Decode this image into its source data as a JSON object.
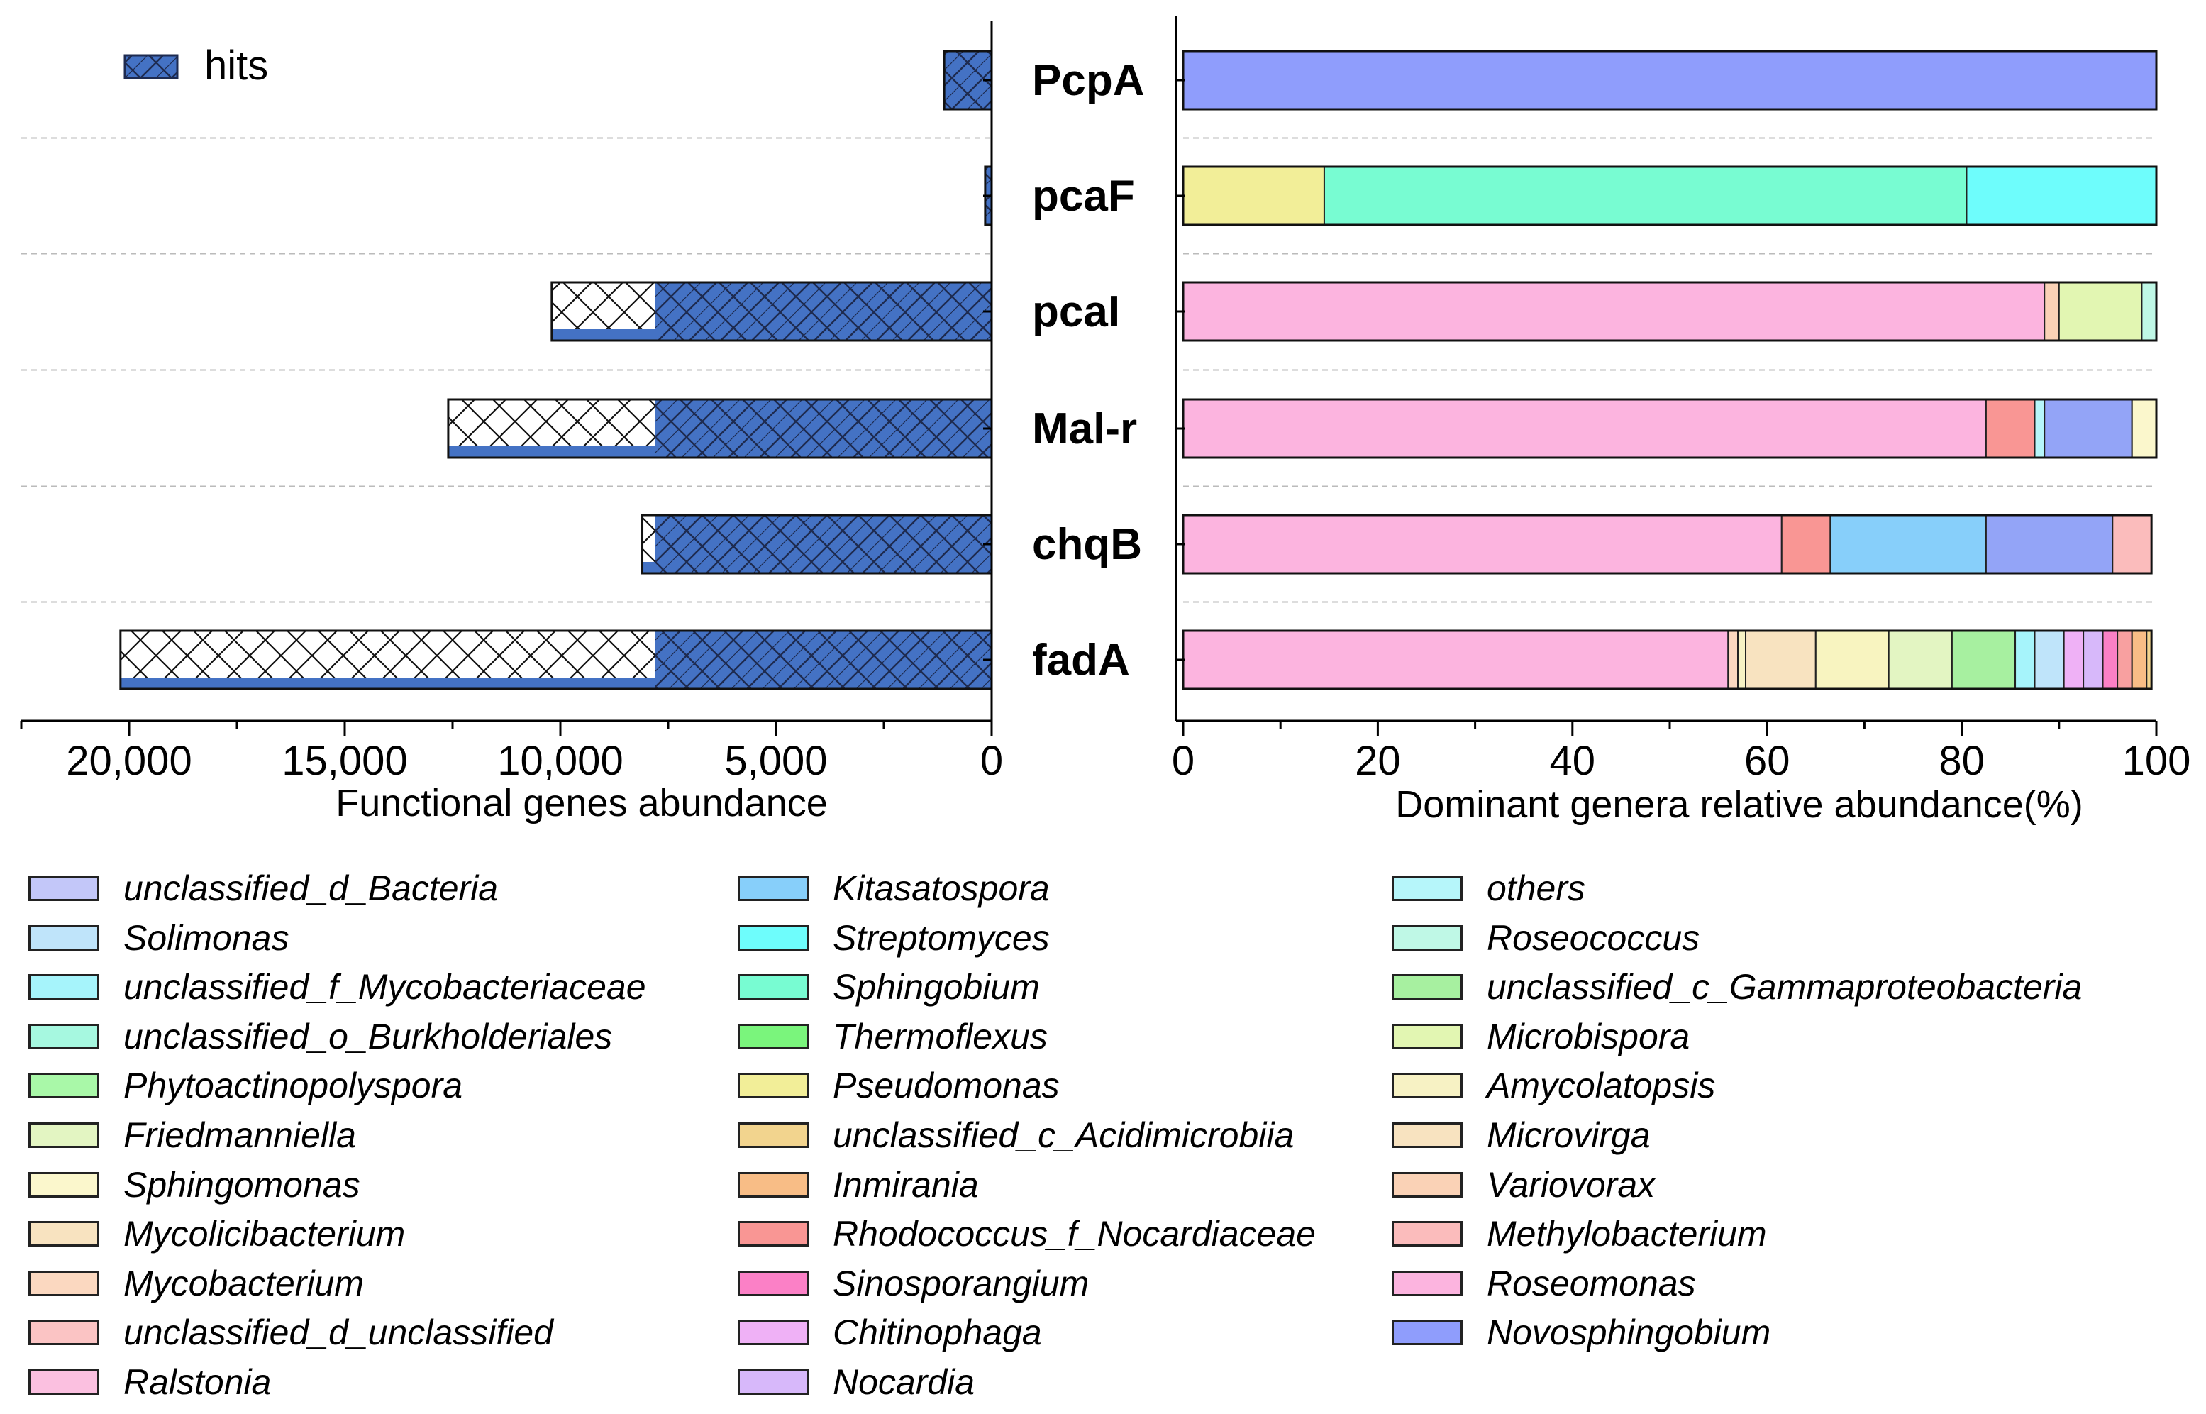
{
  "chart_data": [
    {
      "type": "bar",
      "orientation": "horizontal",
      "title": "",
      "xlabel": "Functional genes abundance",
      "ylabel": "",
      "xlim": [
        22500,
        0
      ],
      "x_tick_labels": [
        "20,000",
        "15,000",
        "10,000",
        "5,000",
        "0"
      ],
      "x_ticks": [
        20000,
        15000,
        10000,
        5000,
        0
      ],
      "legend": {
        "label": "hits",
        "position": "top-left"
      },
      "categories": [
        "PcpA",
        "pcaF",
        "pcaI",
        "Mal-r",
        "chqB",
        "fadA"
      ],
      "values": [
        1100,
        150,
        10200,
        12600,
        8100,
        20200
      ],
      "grid": "dashed separators between categories"
    },
    {
      "type": "bar",
      "stacked": true,
      "orientation": "horizontal",
      "title": "",
      "xlabel": "Dominant genera relative abundance(%)",
      "ylabel": "",
      "xlim": [
        0,
        100
      ],
      "x_ticks": [
        0,
        20,
        40,
        60,
        80,
        100
      ],
      "x_tick_labels": [
        "0",
        "20",
        "40",
        "60",
        "80",
        "100"
      ],
      "categories": [
        "PcpA",
        "pcaF",
        "pcaI",
        "Mal-r",
        "chqB",
        "fadA"
      ],
      "series": [
        {
          "name": "Novosphingobium",
          "color": "#8f9dfc",
          "values": [
            100,
            0,
            0,
            0,
            0,
            0
          ]
        },
        {
          "name": "Pseudomonas",
          "color": "#f2ee98",
          "values": [
            0,
            14.5,
            0,
            0,
            0,
            0
          ]
        },
        {
          "name": "Sphingobium",
          "color": "#78fcd2",
          "values": [
            0,
            66,
            0,
            0,
            0,
            0
          ]
        },
        {
          "name": "Streptomyces",
          "color": "#6efdfc",
          "values": [
            0,
            19.5,
            0,
            0,
            0,
            0
          ]
        },
        {
          "name": "Roseomonas",
          "color": "#fcb4df",
          "values": [
            0,
            0,
            88.5,
            82.5,
            61.5,
            56
          ]
        },
        {
          "name": "Variovorax",
          "color": "#fad2b6",
          "values": [
            0,
            0,
            1.5,
            0,
            0,
            0
          ]
        },
        {
          "name": "Microbispora",
          "color": "#e2f6b2",
          "values": [
            0,
            0,
            8.5,
            0,
            0,
            0
          ]
        },
        {
          "name": "Roseococcus",
          "color": "#bff8e6",
          "values": [
            0,
            0,
            1.5,
            0,
            0,
            0
          ]
        },
        {
          "name": "Rhodococcus_f_Nocardiaceae",
          "color": "#f99694",
          "values": [
            0,
            0,
            0,
            5,
            5,
            0
          ]
        },
        {
          "name": "others",
          "color": "#b6f6fa",
          "values": [
            0,
            0,
            0,
            1,
            0,
            0
          ]
        },
        {
          "name": "Kitasatospora",
          "color": "#87cffa",
          "values": [
            0,
            0,
            0,
            0,
            16,
            0
          ]
        },
        {
          "name": "Novosphingobium (2)",
          "color": "#93a4f7",
          "values": [
            0,
            0,
            0,
            9,
            13,
            0
          ]
        },
        {
          "name": "Sphingomonas",
          "color": "#fbf7cc",
          "values": [
            0,
            0,
            0,
            2.5,
            0,
            0
          ]
        },
        {
          "name": "Methylobacterium",
          "color": "#fbbcbc",
          "values": [
            0,
            0,
            0,
            0,
            4,
            0
          ]
        },
        {
          "name": "Mycobacterium",
          "color": "#fbd8c0",
          "values": [
            0,
            0,
            0,
            0,
            0,
            1
          ]
        },
        {
          "name": "Amycolatopsis",
          "color": "#f7f2c4",
          "values": [
            0,
            0,
            0,
            0,
            0,
            0.8
          ]
        },
        {
          "name": "Mycolicibacterium",
          "color": "#f8e3c0",
          "values": [
            0,
            0,
            0,
            0,
            0,
            7.2
          ]
        },
        {
          "name": "Microvirga",
          "color": "#f8f4c0",
          "values": [
            0,
            0,
            0,
            0,
            0,
            7.5
          ]
        },
        {
          "name": "Friedmanniella",
          "color": "#e3f5c2",
          "values": [
            0,
            0,
            0,
            0,
            0,
            6.5
          ]
        },
        {
          "name": "unclassified_c_Gammaproteobacteria",
          "color": "#a7f0a0",
          "values": [
            0,
            0,
            0,
            0,
            0,
            6.5
          ]
        },
        {
          "name": "unclassified_f_Mycobacteriaceae",
          "color": "#a6f4fb",
          "values": [
            0,
            0,
            0,
            0,
            0,
            2
          ]
        },
        {
          "name": "Solimonas",
          "color": "#bfe4fa",
          "values": [
            0,
            0,
            0,
            0,
            0,
            3
          ]
        },
        {
          "name": "Chitinophaga",
          "color": "#efb1f6",
          "values": [
            0,
            0,
            0,
            0,
            0,
            2
          ]
        },
        {
          "name": "Nocardia",
          "color": "#d7b8fa",
          "values": [
            0,
            0,
            0,
            0,
            0,
            2
          ]
        },
        {
          "name": "Sinosporangium",
          "color": "#fb80c6",
          "values": [
            0,
            0,
            0,
            0,
            0,
            1.5
          ]
        },
        {
          "name": "Rhodococcus (2)",
          "color": "#f8a0a0",
          "values": [
            0,
            0,
            0,
            0,
            0,
            1.5
          ]
        },
        {
          "name": "Inmirania",
          "color": "#f8bd86",
          "values": [
            0,
            0,
            0,
            0,
            0,
            1.5
          ]
        },
        {
          "name": "unclassified_c_Acidimicrobiia",
          "color": "#f2d48e",
          "values": [
            0,
            0,
            0,
            0,
            0,
            0.5
          ]
        }
      ]
    }
  ],
  "legend_items": [
    [
      {
        "label": "unclassified_d_Bacteria",
        "color": "#c3c7f9"
      },
      {
        "label": "Solimonas",
        "color": "#bfe4fa"
      },
      {
        "label": "unclassified_f_Mycobacteriaceae",
        "color": "#a6f4fb"
      },
      {
        "label": "unclassified_o_Burkholderiales",
        "color": "#a6f8e0"
      },
      {
        "label": "Phytoactinopolyspora",
        "color": "#a9f8a8"
      },
      {
        "label": "Friedmanniella",
        "color": "#e3f5c2"
      },
      {
        "label": "Sphingomonas",
        "color": "#fbf7cc"
      },
      {
        "label": "Mycolicibacterium",
        "color": "#f8e3c0"
      },
      {
        "label": "Mycobacterium",
        "color": "#fbd8c0"
      },
      {
        "label": "unclassified_d_unclassified",
        "color": "#fbc4c4"
      },
      {
        "label": "Ralstonia",
        "color": "#fbc0e0"
      }
    ],
    [
      {
        "label": "Kitasatospora",
        "color": "#87cffa"
      },
      {
        "label": "Streptomyces",
        "color": "#6efdfc"
      },
      {
        "label": "Sphingobium",
        "color": "#78fcd2"
      },
      {
        "label": "Thermoflexus",
        "color": "#7af57c"
      },
      {
        "label": "Pseudomonas",
        "color": "#f2ee98"
      },
      {
        "label": "unclassified_c_Acidimicrobiia",
        "color": "#f2d48e"
      },
      {
        "label": "Inmirania",
        "color": "#f8bd86"
      },
      {
        "label": "Rhodococcus_f_Nocardiaceae",
        "color": "#f99694"
      },
      {
        "label": "Sinosporangium",
        "color": "#fb80c6"
      },
      {
        "label": "Chitinophaga",
        "color": "#efb1f6"
      },
      {
        "label": "Nocardia",
        "color": "#d7b8fa"
      }
    ],
    [
      {
        "label": "others",
        "color": "#b6f6fa"
      },
      {
        "label": "Roseococcus",
        "color": "#bff8e6"
      },
      {
        "label": "unclassified_c_Gammaproteobacteria",
        "color": "#a7f0a0"
      },
      {
        "label": "Microbispora",
        "color": "#e2f6b2"
      },
      {
        "label": "Amycolatopsis",
        "color": "#f7f2c4"
      },
      {
        "label": "Microvirga",
        "color": "#f8e3c0"
      },
      {
        "label": "Variovorax",
        "color": "#fad2b6"
      },
      {
        "label": "Methylobacterium",
        "color": "#fbbcbc"
      },
      {
        "label": "Roseomonas",
        "color": "#fcb4df"
      },
      {
        "label": "Novosphingobium",
        "color": "#8f9dfc"
      }
    ]
  ],
  "colors": {
    "hits_fill": "#4472c4",
    "hits_hatch": "#1f2f5c",
    "axis": "#000000",
    "separator": "#bbbbbb"
  }
}
